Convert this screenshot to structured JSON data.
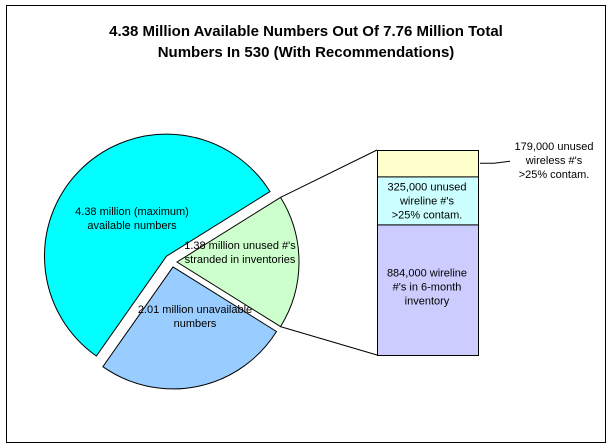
{
  "chart_data": {
    "type": "pie",
    "subtype": "bar-of-pie",
    "title_lines": [
      "4.38 Million Available Numbers Out Of 7.76 Million Total",
      "Numbers In 530 (With Recommendations)"
    ],
    "pie": [
      {
        "name": "available",
        "value": 4.38,
        "label_lines": [
          "4.38 million (maximum)",
          "available numbers"
        ],
        "color": "#00FFFF"
      },
      {
        "name": "unavailable",
        "value": 2.01,
        "label_lines": [
          "2.01 million unavailable",
          "numbers"
        ],
        "color": "#99CCFF"
      },
      {
        "name": "stranded",
        "value": 1.38,
        "label_lines": [
          "1.38 million unused #'s",
          "stranded in inventories"
        ],
        "color": "#CCFFCC"
      }
    ],
    "bar": [
      {
        "name": "wireless-contam",
        "value": 179000,
        "label_lines": [
          "179,000 unused",
          "wireless #'s",
          ">25% contam."
        ],
        "color": "#FFFFCC"
      },
      {
        "name": "wireline-contam",
        "value": 325000,
        "label_lines": [
          "325,000 unused",
          "wireline #'s",
          ">25% contam."
        ],
        "color": "#CCFFFF"
      },
      {
        "name": "wireline-inventory",
        "value": 884000,
        "label_lines": [
          "884,000 wireline",
          "#'s in 6-month",
          "inventory"
        ],
        "color": "#CCCCFF"
      }
    ]
  }
}
